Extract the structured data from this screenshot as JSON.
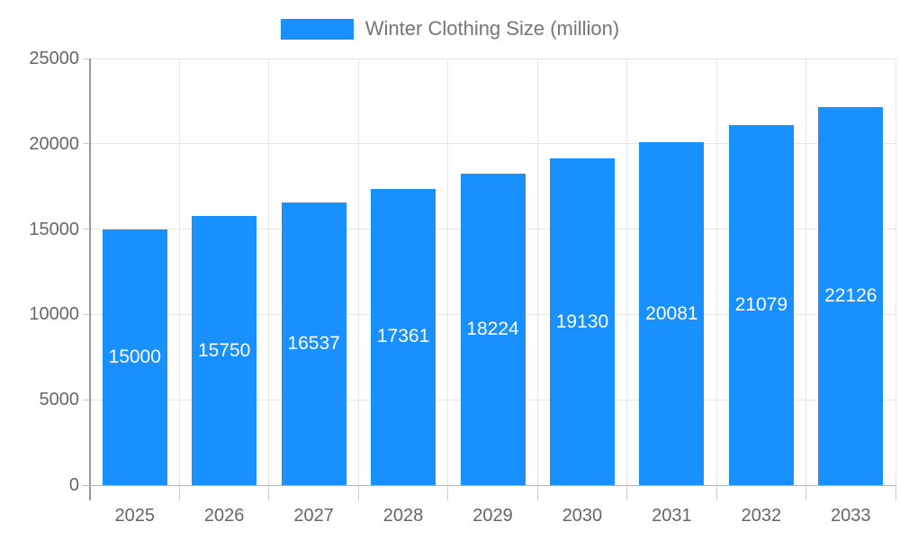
{
  "legend": {
    "label": "Winter Clothing Size (million)",
    "swatch_color": "#1890FF"
  },
  "chart_data": {
    "type": "bar",
    "title": "",
    "categories": [
      "2025",
      "2026",
      "2027",
      "2028",
      "2029",
      "2030",
      "2031",
      "2032",
      "2033"
    ],
    "series": [
      {
        "name": "Winter Clothing Size (million)",
        "values": [
          15000,
          15750,
          16537,
          17361,
          18224,
          19130,
          20081,
          21079,
          22126
        ],
        "color": "#1890FF"
      }
    ],
    "xlabel": "",
    "ylabel": "",
    "ylim": [
      0,
      25000
    ],
    "yticks": [
      0,
      5000,
      10000,
      15000,
      20000,
      25000
    ],
    "grid": true,
    "legend_position": "top-center",
    "value_label_position": "inside-center",
    "value_label_color": "#FFFFFF"
  },
  "colors": {
    "background": "#FFFFFF",
    "bar": "#1890FF",
    "grid_line": "#E6E6E6",
    "y_axis_line": "#999999",
    "x_axis_line": "#B3B3B3",
    "tick_mark": "#CCCCCC",
    "axis_label_text": "#666666",
    "legend_text": "#757575"
  }
}
